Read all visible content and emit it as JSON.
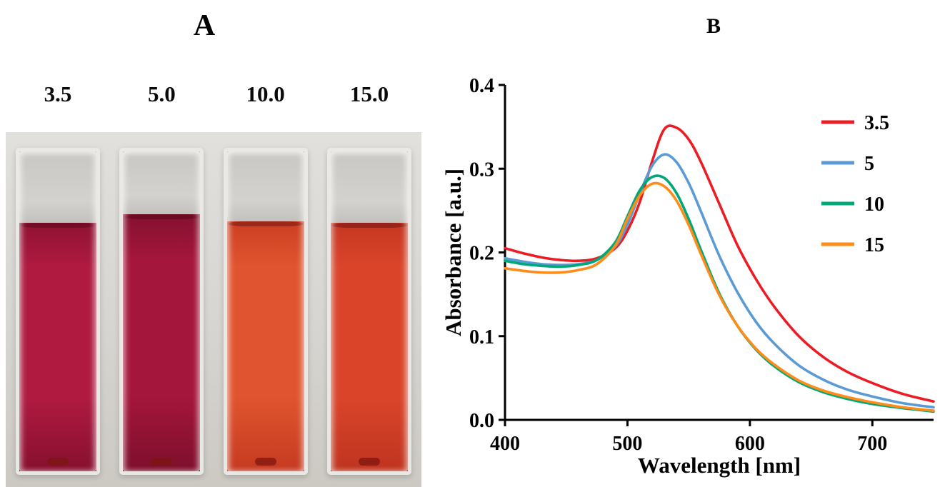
{
  "figure": {
    "panel_a": {
      "label": "A",
      "cuvettes": [
        {
          "label": "3.5",
          "liquid_top": "#8f1233",
          "liquid_body": "#b01a41",
          "liquid_bottom": "#87102f",
          "gap": 100
        },
        {
          "label": "5.0",
          "liquid_top": "#85102f",
          "liquid_body": "#a5163c",
          "liquid_bottom": "#7e0f2c",
          "gap": 88
        },
        {
          "label": "10.0",
          "liquid_top": "#cc3e22",
          "liquid_body": "#e0552f",
          "liquid_bottom": "#c63a21",
          "gap": 98
        },
        {
          "label": "15.0",
          "liquid_top": "#c53722",
          "liquid_body": "#da452a",
          "liquid_bottom": "#bf3420",
          "gap": 100
        }
      ]
    },
    "panel_b": {
      "label": "B"
    }
  },
  "chart_data": {
    "type": "line",
    "title": "",
    "xlabel": "Wavelength [nm]",
    "ylabel": "Absorbance [a.u.]",
    "xlim": [
      400,
      750
    ],
    "ylim": [
      0,
      0.4
    ],
    "xticks": [
      400,
      500,
      600,
      700
    ],
    "ytick_labels": [
      "0.0",
      "0.1",
      "0.2",
      "0.3",
      "0.4"
    ],
    "grid": false,
    "legend_position": "top-right-inside",
    "x": [
      400,
      415,
      430,
      445,
      460,
      475,
      490,
      500,
      510,
      520,
      530,
      540,
      550,
      560,
      575,
      590,
      605,
      620,
      640,
      660,
      680,
      700,
      725,
      750
    ],
    "series": [
      {
        "name": "3.5",
        "color": "#ec1c24",
        "values": [
          0.205,
          0.199,
          0.194,
          0.191,
          0.19,
          0.193,
          0.205,
          0.226,
          0.26,
          0.308,
          0.347,
          0.349,
          0.335,
          0.308,
          0.258,
          0.208,
          0.168,
          0.135,
          0.1,
          0.075,
          0.057,
          0.044,
          0.031,
          0.022
        ]
      },
      {
        "name": "5",
        "color": "#5b9bd5",
        "values": [
          0.193,
          0.189,
          0.186,
          0.185,
          0.186,
          0.191,
          0.207,
          0.233,
          0.27,
          0.303,
          0.317,
          0.308,
          0.283,
          0.249,
          0.196,
          0.152,
          0.117,
          0.091,
          0.065,
          0.048,
          0.036,
          0.028,
          0.02,
          0.015
        ]
      },
      {
        "name": "10",
        "color": "#00a878",
        "values": [
          0.19,
          0.186,
          0.184,
          0.183,
          0.185,
          0.191,
          0.212,
          0.243,
          0.274,
          0.29,
          0.289,
          0.271,
          0.24,
          0.203,
          0.151,
          0.112,
          0.084,
          0.064,
          0.045,
          0.033,
          0.025,
          0.019,
          0.014,
          0.01
        ]
      },
      {
        "name": "15",
        "color": "#ff8c1a",
        "values": [
          0.181,
          0.178,
          0.176,
          0.176,
          0.179,
          0.186,
          0.208,
          0.24,
          0.268,
          0.282,
          0.279,
          0.262,
          0.233,
          0.198,
          0.149,
          0.112,
          0.085,
          0.066,
          0.047,
          0.035,
          0.027,
          0.021,
          0.015,
          0.011
        ]
      }
    ]
  }
}
